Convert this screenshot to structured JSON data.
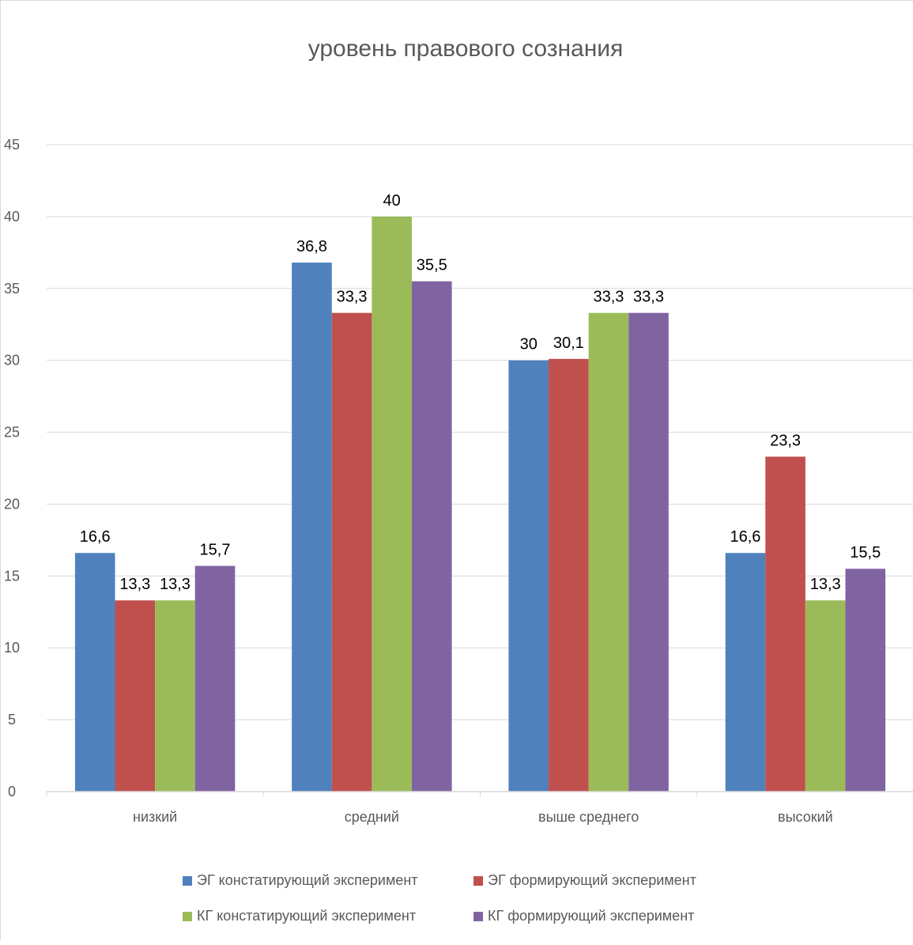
{
  "chart_data": {
    "type": "bar",
    "title": "уровень правового сознания",
    "categories": [
      "низкий",
      "средний",
      "выше среднего",
      "высокий"
    ],
    "series": [
      {
        "name": "ЭГ констатирующий эксперимент",
        "values": [
          16.6,
          36.8,
          30,
          16.6
        ],
        "labels": [
          "16,6",
          "36,8",
          "30",
          "16,6"
        ],
        "color": "#4f81bd"
      },
      {
        "name": "ЭГ формирующий эксперимент",
        "values": [
          13.3,
          33.3,
          30.1,
          23.3
        ],
        "labels": [
          "13,3",
          "33,3",
          "30,1",
          "23,3"
        ],
        "color": "#c0504d"
      },
      {
        "name": "КГ констатирующий эксперимент",
        "values": [
          13.3,
          40,
          33.3,
          13.3
        ],
        "labels": [
          "13,3",
          "40",
          "33,3",
          "13,3"
        ],
        "color": "#9bbb59"
      },
      {
        "name": "КГ формирующий эксперимент",
        "values": [
          15.7,
          35.5,
          33.3,
          15.5
        ],
        "labels": [
          "15,7",
          "35,5",
          "33,3",
          "15,5"
        ],
        "color": "#8064a2"
      }
    ],
    "ylim": [
      0,
      45
    ],
    "yticks": [
      0,
      5,
      10,
      15,
      20,
      25,
      30,
      35,
      40,
      45
    ],
    "xlabel": "",
    "ylabel": "",
    "grid": true,
    "legend_position": "bottom"
  }
}
